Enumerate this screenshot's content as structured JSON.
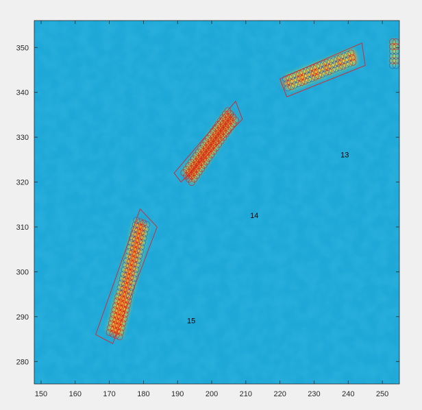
{
  "chart_data": {
    "type": "scatter",
    "title": "",
    "xlabel": "",
    "ylabel": "",
    "xlim": [
      148,
      255
    ],
    "ylim": [
      275,
      356
    ],
    "xticks": [
      150,
      160,
      170,
      180,
      190,
      200,
      210,
      220,
      230,
      240,
      250
    ],
    "yticks": [
      280,
      290,
      300,
      310,
      320,
      330,
      340,
      350
    ],
    "grid": false,
    "background_colormap": "parula",
    "colors": {
      "background": "#1ea8d8",
      "hot_red": "#c9341e",
      "hot_orange": "#f28e2b",
      "hot_yellow": "#f3e43b",
      "hot_green": "#86c95a",
      "circle_red": "#d0201f",
      "circle_blue": "#1f5fbf",
      "rect_line": "#e02020",
      "axis": "#262626"
    },
    "annotations": [
      {
        "text": "13",
        "x": 239,
        "y": 325.5
      },
      {
        "text": "14",
        "x": 212.5,
        "y": 312
      },
      {
        "text": "15",
        "x": 194,
        "y": 288.5
      }
    ],
    "segments": [
      {
        "id": "15",
        "start": [
          171.5,
          286
        ],
        "end": [
          179.5,
          311
        ],
        "width": 4.5,
        "intensity": "high"
      },
      {
        "id": "14",
        "start": [
          193,
          321
        ],
        "end": [
          206,
          335
        ],
        "width": 4,
        "intensity": "very-high"
      },
      {
        "id": "13",
        "start": [
          222,
          342
        ],
        "end": [
          242,
          348
        ],
        "width": 3.5,
        "intensity": "medium"
      },
      {
        "id": "edge",
        "start": [
          253.5,
          346
        ],
        "end": [
          253.5,
          351.5
        ],
        "width": 1.5,
        "intensity": "medium"
      }
    ],
    "rectangles": [
      {
        "corners": [
          [
            166,
            286
          ],
          [
            171,
            284
          ],
          [
            184,
            310
          ],
          [
            179,
            314
          ]
        ]
      },
      {
        "corners": [
          [
            189,
            322
          ],
          [
            191,
            320
          ],
          [
            209,
            334
          ],
          [
            207,
            338
          ]
        ]
      },
      {
        "corners": [
          [
            220,
            343
          ],
          [
            222,
            339
          ],
          [
            245,
            346
          ],
          [
            244,
            351
          ]
        ]
      }
    ]
  }
}
